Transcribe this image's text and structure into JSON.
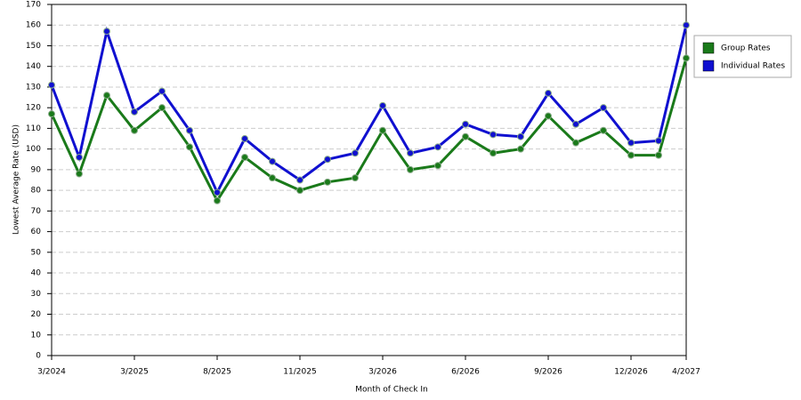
{
  "chart_data": {
    "type": "line",
    "x_label": "Month of Check In",
    "y_label": "Lowest Average Rate (USD)",
    "categories": [
      "3/2024",
      null,
      null,
      "3/2025",
      null,
      null,
      "8/2025",
      null,
      null,
      "11/2025",
      null,
      null,
      "3/2026",
      null,
      null,
      "6/2026",
      null,
      null,
      "9/2026",
      null,
      null,
      "12/2026",
      null,
      "4/2027"
    ],
    "series": [
      {
        "name": "Group Rates",
        "color": "#1a7a1a",
        "values": [
          117,
          88,
          126,
          109,
          120,
          101,
          75,
          96,
          86,
          80,
          84,
          86,
          109,
          90,
          92,
          106,
          98,
          100,
          116,
          103,
          109,
          97,
          97,
          144
        ]
      },
      {
        "name": "Individual Rates",
        "color": "#1010d0",
        "values": [
          131,
          96,
          157,
          118,
          128,
          109,
          79,
          105,
          94,
          85,
          95,
          98,
          121,
          98,
          101,
          112,
          107,
          106,
          127,
          112,
          120,
          103,
          104,
          160
        ]
      }
    ],
    "ylim": [
      0,
      170
    ],
    "yticks": [
      0,
      10,
      20,
      30,
      40,
      50,
      60,
      70,
      80,
      90,
      100,
      110,
      120,
      130,
      140,
      150,
      160,
      170
    ],
    "grid": true,
    "legend": "right"
  }
}
